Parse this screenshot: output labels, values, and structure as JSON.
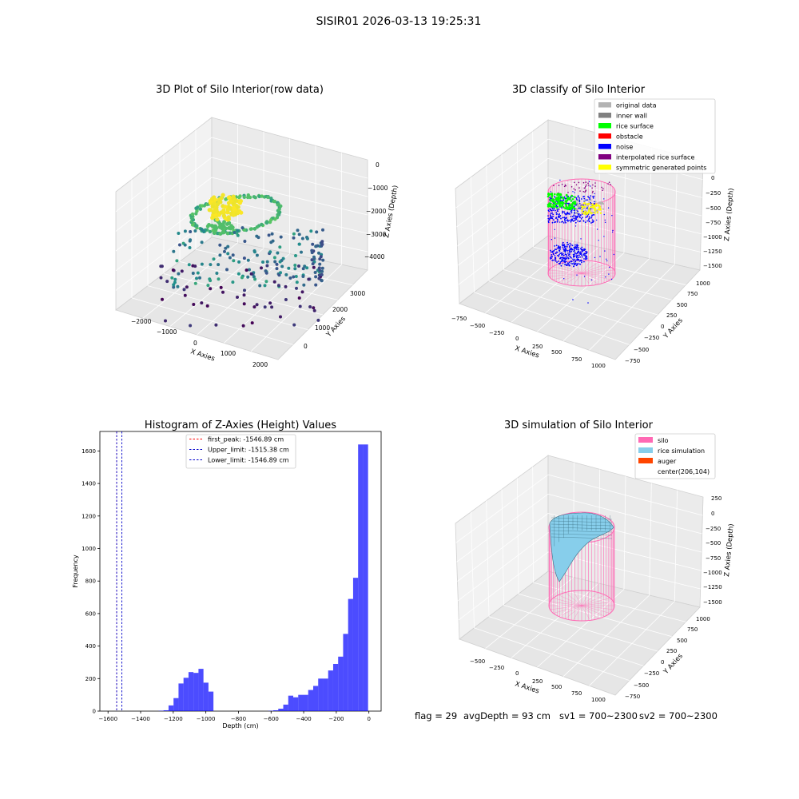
{
  "figure_title": "SISIR01 2026-03-13 19:25:31",
  "panels": {
    "raw": {
      "title": "3D Plot of Silo Interior(row data)",
      "xlabel": "X Axies",
      "ylabel": "Y Axies",
      "zlabel": "Z Axies (Depth)",
      "xticks": [
        "−2000",
        "−1000",
        "0",
        "1000",
        "2000"
      ],
      "yticks": [
        "0",
        "1000",
        "2000",
        "3000"
      ],
      "zticks": [
        "0",
        "−1000",
        "−2000",
        "−3000",
        "−4000"
      ]
    },
    "classify": {
      "title": "3D classify of Silo Interior",
      "xlabel": "X Axies",
      "ylabel": "Y Axies",
      "zlabel": "Z Axies (Depth)",
      "xticks": [
        "−750",
        "−500",
        "−250",
        "0",
        "250",
        "500",
        "750",
        "1000"
      ],
      "yticks": [
        "−750",
        "−500",
        "−250",
        "0",
        "250",
        "500",
        "750",
        "1000"
      ],
      "zticks": [
        "0",
        "−250",
        "−500",
        "−750",
        "−1000",
        "−1250",
        "−1500"
      ],
      "legend": [
        {
          "label": "original data",
          "color": "#b3b3b3"
        },
        {
          "label": "inner wall",
          "color": "#808080"
        },
        {
          "label": "rice surface",
          "color": "#00ff00"
        },
        {
          "label": "obstacle",
          "color": "#ff0000"
        },
        {
          "label": "noise",
          "color": "#0000ff"
        },
        {
          "label": "interpolated rice surface",
          "color": "#800080"
        },
        {
          "label": "symmetric generated points",
          "color": "#ffff00"
        }
      ]
    },
    "simulation": {
      "title": "3D simulation of Silo Interior",
      "xlabel": "X Axies",
      "ylabel": "Y Axies",
      "zlabel": "Z Axies (Depth)",
      "xticks": [
        "−500",
        "−250",
        "0",
        "250",
        "500",
        "750",
        "1000"
      ],
      "yticks": [
        "−750",
        "−500",
        "−250",
        "0",
        "250",
        "500",
        "750",
        "1000"
      ],
      "zticks": [
        "250",
        "0",
        "−250",
        "−500",
        "−750",
        "−1000",
        "−1250",
        "−1500"
      ],
      "legend": [
        {
          "label": "silo",
          "color": "#ff69b4"
        },
        {
          "label": "rice simulation",
          "color": "#87ceeb"
        },
        {
          "label": "auger",
          "color": "#ff4500"
        },
        {
          "label": "center(206,104)",
          "color": ""
        }
      ]
    }
  },
  "status_line": {
    "flag": "flag = 29",
    "avg_depth": "avgDepth = 93 cm",
    "sv1": "sv1 = 700~2300",
    "sv2": "sv2 = 700~2300"
  },
  "chart_data": [
    {
      "type": "histogram",
      "title": "Histogram of Z-Axies (Height) Values",
      "xlabel": "Depth (cm)",
      "ylabel": "Frequency",
      "xlim": [
        -1650,
        75
      ],
      "ylim": [
        0,
        1720
      ],
      "xticks": [
        -1600,
        -1400,
        -1200,
        -1000,
        -800,
        -600,
        -400,
        -200,
        0
      ],
      "yticks": [
        0,
        200,
        400,
        600,
        800,
        1000,
        1200,
        1400,
        1600
      ],
      "bar_color": "#0000ff",
      "bin_width": 30.6,
      "bin_lefts": [
        -1290,
        -1259.4,
        -1228.8,
        -1198.2,
        -1167.6,
        -1137,
        -1106.4,
        -1075.8,
        -1045.2,
        -1014.6,
        -984,
        -617,
        -586.4,
        -555.8,
        -525.2,
        -494.6,
        -464,
        -433.4,
        -402.8,
        -372.2,
        -341.6,
        -311,
        -280.4,
        -249.8,
        -219.2,
        -188.6,
        -158,
        -127.4,
        -96.8,
        -66.2,
        -35.6
      ],
      "counts": [
        2,
        5,
        35,
        80,
        170,
        205,
        240,
        235,
        260,
        175,
        120,
        2,
        5,
        15,
        40,
        95,
        85,
        100,
        100,
        130,
        155,
        200,
        200,
        250,
        290,
        335,
        475,
        690,
        820,
        1640,
        1640
      ],
      "vlines": [
        {
          "label": "first_peak: -1546.89 cm",
          "x": -1546.89,
          "color": "#ff0000"
        },
        {
          "label": "Upper_limit: -1515.38 cm",
          "x": -1515.38,
          "color": "#0000cc"
        },
        {
          "label": "Lower_limit: -1546.89 cm",
          "x": -1546.89,
          "color": "#0000cc"
        }
      ]
    }
  ]
}
